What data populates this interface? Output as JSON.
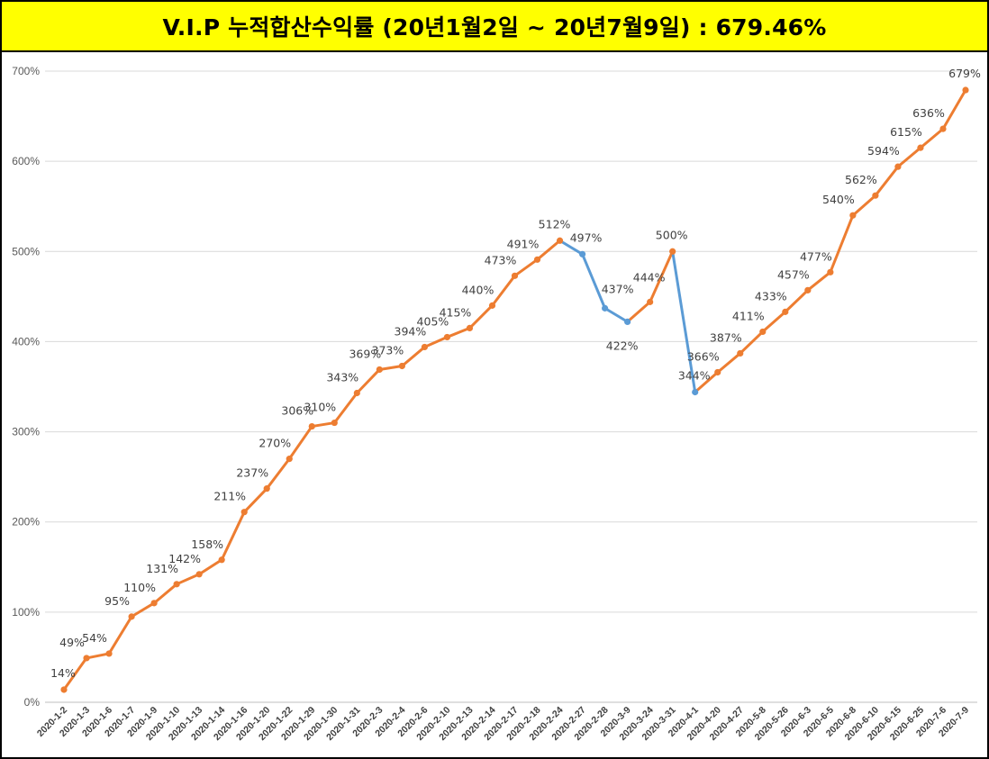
{
  "title": "V.I.P 누적합산수익률 (20년1월2일 ~ 20년7월9일) : 679.46%",
  "chart_data": {
    "type": "line",
    "title": "V.I.P 누적합산수익률 (20년1월2일 ~ 20년7월9일) : 679.46%",
    "xlabel": "",
    "ylabel": "",
    "ylim": [
      0,
      700
    ],
    "yticks": [
      "0%",
      "100%",
      "200%",
      "300%",
      "400%",
      "500%",
      "600%",
      "700%"
    ],
    "grid": true,
    "legend": "none",
    "colors": {
      "up": "#ed7d31",
      "down": "#5b9bd5",
      "grid": "#d9d9d9",
      "title_bg": "#ffff00"
    },
    "categories": [
      "2020-1-2",
      "2020-1-3",
      "2020-1-6",
      "2020-1-7",
      "2020-1-9",
      "2020-1-10",
      "2020-1-13",
      "2020-1-14",
      "2020-1-16",
      "2020-1-20",
      "2020-1-22",
      "2020-1-29",
      "2020-1-30",
      "2020-1-31",
      "2020-2-3",
      "2020-2-4",
      "2020-2-6",
      "2020-2-10",
      "2020-2-13",
      "2020-2-14",
      "2020-2-17",
      "2020-2-18",
      "2020-2-24",
      "2020-2-27",
      "2020-2-28",
      "2020-3-9",
      "2020-3-24",
      "2020-3-31",
      "2020-4-1",
      "2020-4-20",
      "2020-4-27",
      "2020-5-8",
      "2020-5-26",
      "2020-6-3",
      "2020-6-5",
      "2020-6-8",
      "2020-6-10",
      "2020-6-15",
      "2020-6-25",
      "2020-7-6",
      "2020-7-9"
    ],
    "values": [
      14,
      49,
      54,
      95,
      110,
      131,
      142,
      158,
      211,
      237,
      270,
      306,
      310,
      343,
      369,
      373,
      394,
      405,
      415,
      440,
      473,
      491,
      512,
      497,
      437,
      422,
      444,
      500,
      344,
      366,
      387,
      411,
      433,
      457,
      477,
      540,
      562,
      594,
      615,
      636,
      679
    ],
    "labels": [
      "14%",
      "49%",
      "54%",
      "95%",
      "110%",
      "131%",
      "142%",
      "158%",
      "211%",
      "237%",
      "270%",
      "306%",
      "310%",
      "343%",
      "369%",
      "373%",
      "394%",
      "405%",
      "415%",
      "440%",
      "473%",
      "491%",
      "512%",
      "497%",
      "437%",
      "422%",
      "444%",
      "500%",
      "344%",
      "366%",
      "387%",
      "411%",
      "433%",
      "457%",
      "477%",
      "540%",
      "562%",
      "594%",
      "615%",
      "636%",
      "679%"
    ]
  }
}
